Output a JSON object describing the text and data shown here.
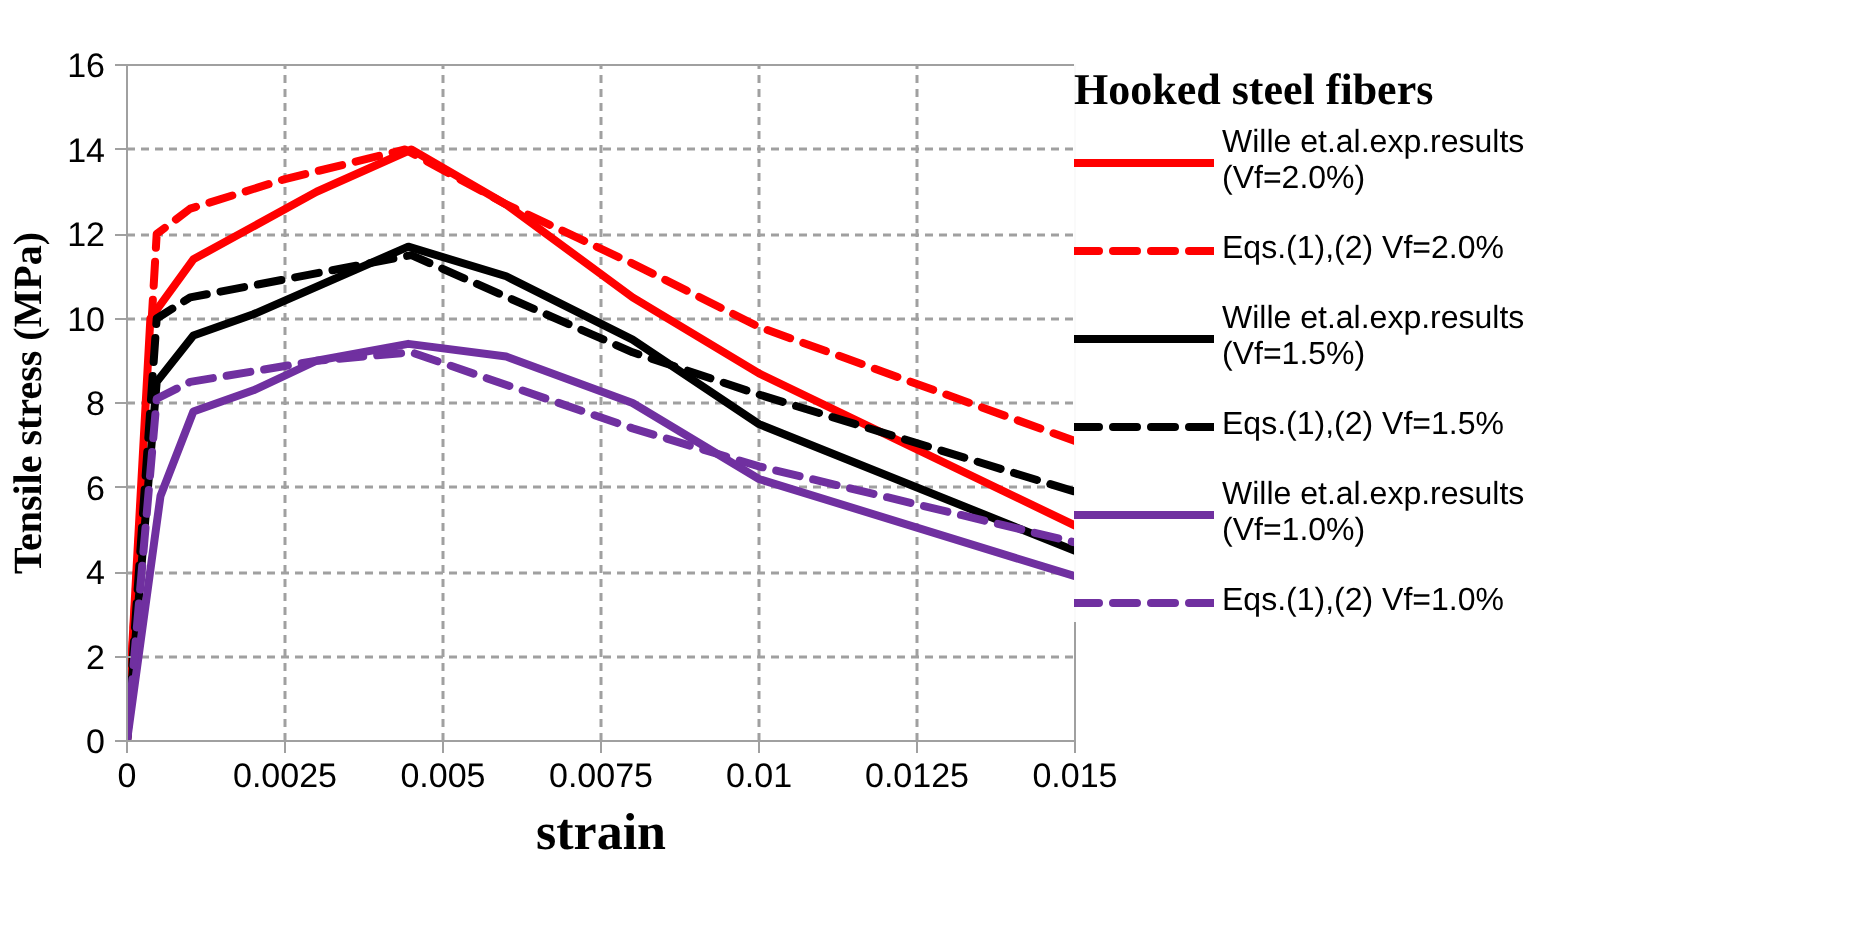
{
  "chart_data": {
    "type": "line",
    "xlabel": "strain",
    "ylabel": "Tensile stress (MPa)",
    "legend_title": "Hooked steel fibers",
    "xlim": [
      0,
      0.015
    ],
    "ylim": [
      0,
      16
    ],
    "xticks": [
      0,
      0.0025,
      0.005,
      0.0075,
      0.01,
      0.0125,
      0.015
    ],
    "yticks": [
      0,
      2,
      4,
      6,
      8,
      10,
      12,
      14,
      16
    ],
    "grid": true,
    "legend": "right",
    "series": [
      {
        "name": "Wille et.al.exp.results\n(Vf=2.0%)",
        "color": "#ff0000",
        "line_style": "solid",
        "x": [
          0,
          0.00037,
          0.00105,
          0.003,
          0.0045,
          0.006,
          0.008,
          0.01,
          0.015
        ],
        "values": [
          0,
          10,
          11.4,
          13,
          14,
          12.7,
          10.5,
          8.7,
          5.1
        ]
      },
      {
        "name": "Eqs.(1),(2) Vf=2.0%",
        "color": "#ff0000",
        "line_style": "dashed",
        "x": [
          0,
          0.00047,
          0.001,
          0.0025,
          0.0044,
          0.006,
          0.008,
          0.01,
          0.015
        ],
        "values": [
          0,
          12,
          12.6,
          13.3,
          14,
          12.7,
          11.3,
          9.8,
          7.1
        ]
      },
      {
        "name": "Wille et.al.exp.results\n(Vf=1.5%)",
        "color": "#000000",
        "line_style": "solid",
        "x": [
          0,
          0.00047,
          0.00105,
          0.002,
          0.00445,
          0.006,
          0.008,
          0.01,
          0.015
        ],
        "values": [
          0,
          8.5,
          9.6,
          10.1,
          11.7,
          11,
          9.5,
          7.5,
          4.5
        ]
      },
      {
        "name": "Eqs.(1),(2) Vf=1.5%",
        "color": "#000000",
        "line_style": "dashed",
        "x": [
          0,
          0.00047,
          0.001,
          0.0045,
          0.008,
          0.01,
          0.015
        ],
        "values": [
          0,
          10,
          10.5,
          11.5,
          9.2,
          8.2,
          5.9
        ]
      },
      {
        "name": "Wille et.al.exp.results\n(Vf=1.0%)",
        "color": "#7030a0",
        "line_style": "solid",
        "x": [
          0,
          0.00053,
          0.00105,
          0.002,
          0.003,
          0.00445,
          0.006,
          0.008,
          0.01,
          0.015
        ],
        "values": [
          0,
          5.8,
          7.8,
          8.3,
          9,
          9.4,
          9.1,
          8,
          6.2,
          3.9
        ]
      },
      {
        "name": "Eqs.(1),(2) Vf=1.0%",
        "color": "#7030a0",
        "line_style": "dashed",
        "x": [
          0,
          0.00047,
          0.001,
          0.003,
          0.0045,
          0.008,
          0.01,
          0.015
        ],
        "values": [
          0,
          8.1,
          8.5,
          9,
          9.2,
          7.4,
          6.5,
          4.7
        ]
      }
    ]
  }
}
